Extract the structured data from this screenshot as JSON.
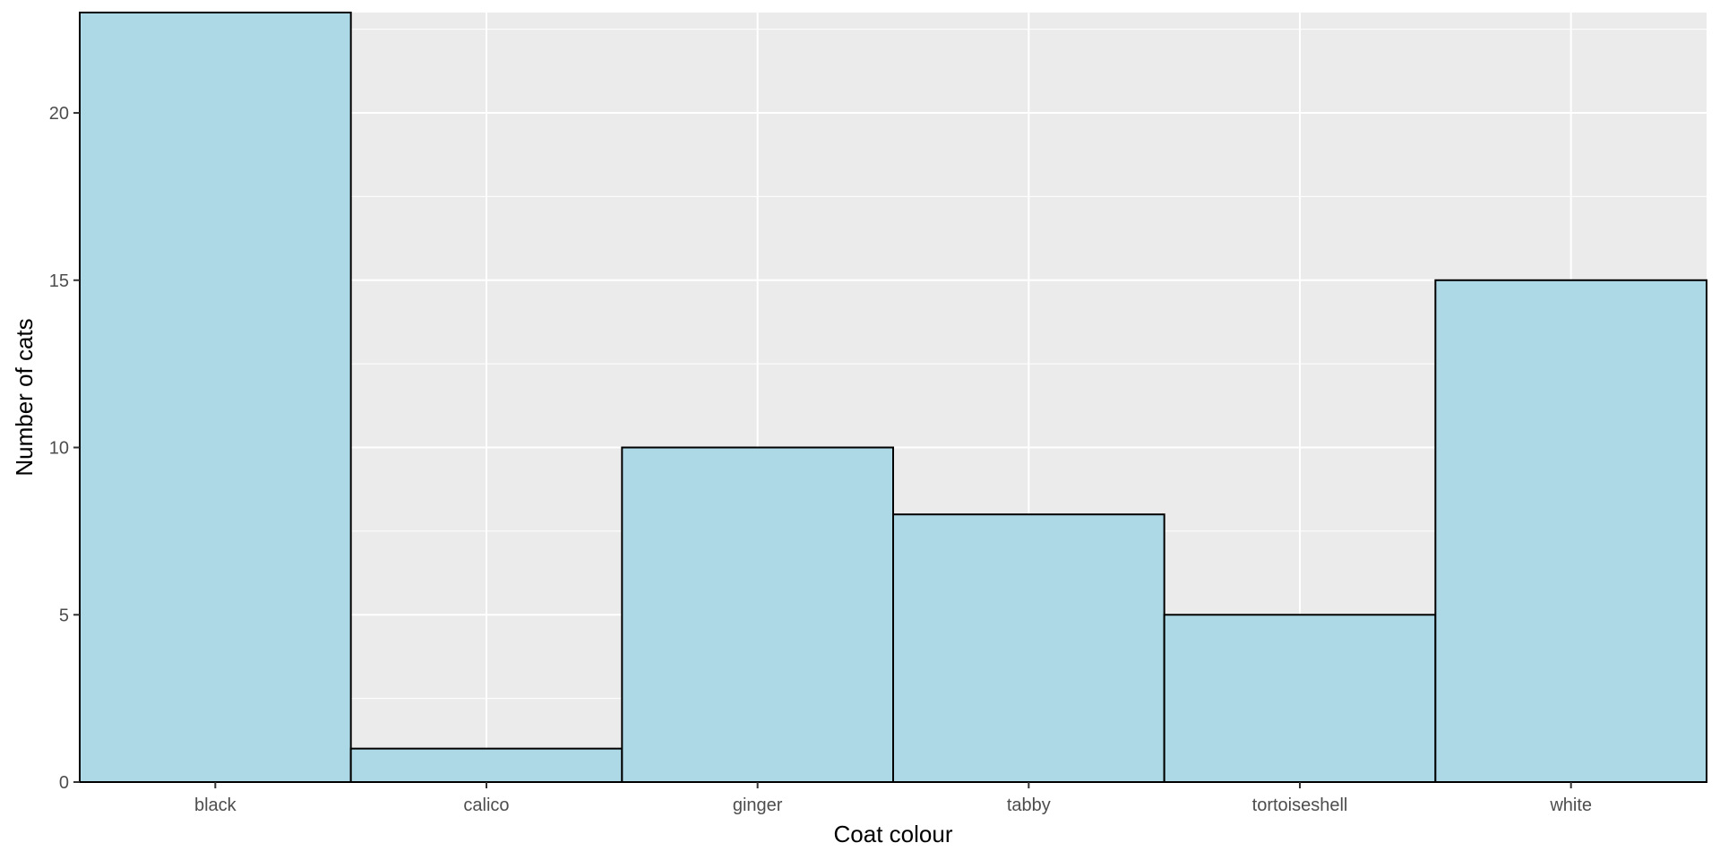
{
  "chart_data": {
    "type": "bar",
    "categories": [
      "black",
      "calico",
      "ginger",
      "tabby",
      "tortoiseshell",
      "white"
    ],
    "values": [
      23,
      1,
      10,
      8,
      5,
      15
    ],
    "xlabel": "Coat colour",
    "ylabel": "Number of cats",
    "ylim": [
      0,
      23
    ],
    "yticks": [
      0,
      5,
      10,
      15,
      20
    ],
    "grid": true,
    "bar_fill": "#add8e6",
    "bar_outline": "#000000",
    "panel_background": "#ebebeb",
    "grid_color": "#ffffff"
  }
}
